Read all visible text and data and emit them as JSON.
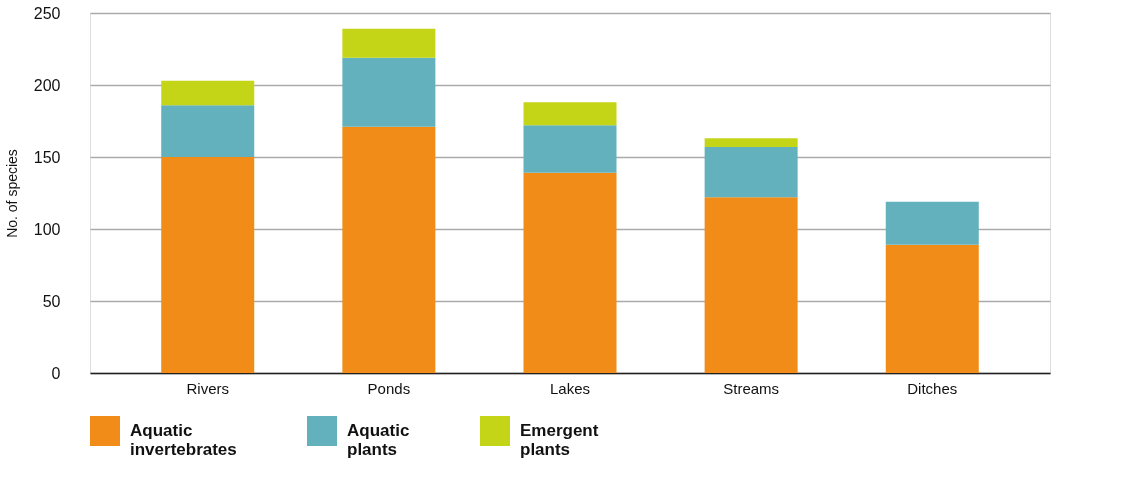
{
  "chart_data": {
    "type": "bar",
    "stacked": true,
    "ylabel": "No. of species",
    "categories": [
      "Rivers",
      "Ponds",
      "Lakes",
      "Streams",
      "Ditches"
    ],
    "series": [
      {
        "name": "Aquatic invertebrates",
        "color": "#f08c17",
        "values": [
          150,
          171,
          139,
          122,
          89
        ]
      },
      {
        "name": "Aquatic plants",
        "color": "#63b1bd",
        "values": [
          36,
          48,
          33,
          35,
          30
        ]
      },
      {
        "name": "Emergent plants",
        "color": "#c4d416",
        "values": [
          17,
          20,
          16,
          6,
          null
        ]
      }
    ],
    "ylim": [
      0,
      250
    ],
    "yticks": [
      0,
      50,
      100,
      150,
      200,
      250
    ],
    "grid": "y",
    "legend": "bottom"
  }
}
